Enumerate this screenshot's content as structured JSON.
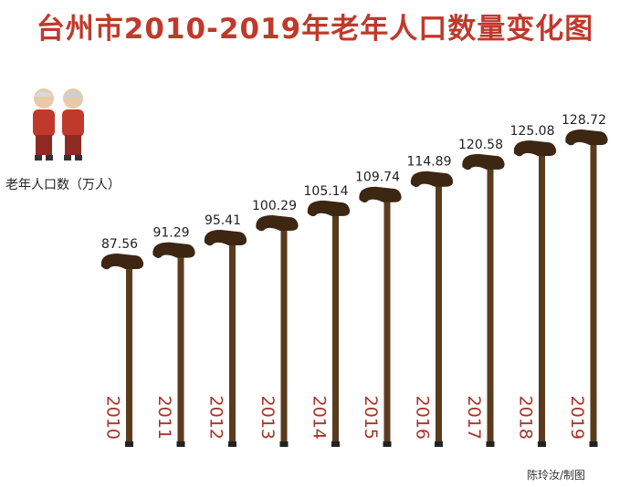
{
  "title": "台州市2010-2019年老年人口数量变化图",
  "credit": "陈玲汝/制图",
  "colors": {
    "title": "#c0392b",
    "cane": "#5a3b1c",
    "cane_head": "#3d2612",
    "year": "#a93226",
    "value": "#222222"
  },
  "chart_data": {
    "type": "bar",
    "title": "台州市2010-2019年老年人口数量变化图",
    "ylabel": "老年人口数（万人）",
    "categories": [
      "2010",
      "2011",
      "2012",
      "2013",
      "2014",
      "2015",
      "2016",
      "2017",
      "2018",
      "2019"
    ],
    "values": [
      87.56,
      91.29,
      95.41,
      100.29,
      105.14,
      109.74,
      114.89,
      120.58,
      125.08,
      128.72
    ],
    "data_labels": [
      "87.56",
      "91.29",
      "95.41",
      "100.29",
      "105.14",
      "109.74",
      "114.89",
      "120.58",
      "125.08",
      "128.72"
    ],
    "grid": false,
    "legend": "none"
  }
}
